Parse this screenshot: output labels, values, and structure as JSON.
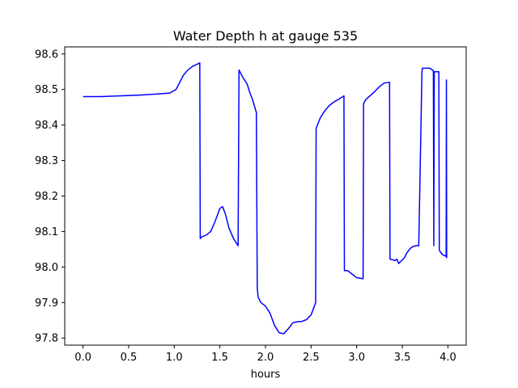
{
  "chart_data": {
    "type": "line",
    "title": "Water Depth h at gauge 535",
    "xlabel": "hours",
    "ylabel": "",
    "xlim": [
      -0.2,
      4.2
    ],
    "ylim": [
      97.78,
      98.62
    ],
    "grid": false,
    "legend": "none",
    "colors": {
      "line": "#0000ff",
      "axes": "#000000",
      "background": "#ffffff"
    },
    "x_ticks": [
      0.0,
      0.5,
      1.0,
      1.5,
      2.0,
      2.5,
      3.0,
      3.5,
      4.0
    ],
    "x_tick_labels": [
      "0.0",
      "0.5",
      "1.0",
      "1.5",
      "2.0",
      "2.5",
      "3.0",
      "3.5",
      "4.0"
    ],
    "y_ticks": [
      97.8,
      97.9,
      98.0,
      98.1,
      98.2,
      98.3,
      98.4,
      98.5,
      98.6
    ],
    "y_tick_labels": [
      "97.8",
      "97.9",
      "98.0",
      "98.1",
      "98.2",
      "98.3",
      "98.4",
      "98.5",
      "98.6"
    ],
    "series": [
      {
        "color": "#0000ff",
        "x": [
          0.0,
          0.2,
          0.4,
          0.6,
          0.8,
          0.95,
          1.02,
          1.06,
          1.1,
          1.15,
          1.2,
          1.28,
          1.285,
          1.3,
          1.35,
          1.4,
          1.45,
          1.5,
          1.53,
          1.56,
          1.6,
          1.65,
          1.7,
          1.71,
          1.72,
          1.75,
          1.8,
          1.83,
          1.86,
          1.9,
          1.91,
          1.92,
          1.95,
          2.0,
          2.05,
          2.1,
          2.15,
          2.2,
          2.25,
          2.3,
          2.35,
          2.4,
          2.45,
          2.5,
          2.55,
          2.555,
          2.6,
          2.65,
          2.7,
          2.75,
          2.8,
          2.86,
          2.865,
          2.9,
          2.95,
          3.0,
          3.07,
          3.075,
          3.1,
          3.15,
          3.2,
          3.25,
          3.3,
          3.35,
          3.36,
          3.365,
          3.4,
          3.42,
          3.44,
          3.46,
          3.48,
          3.5,
          3.52,
          3.55,
          3.58,
          3.6,
          3.62,
          3.65,
          3.68,
          3.715,
          3.72,
          3.75,
          3.8,
          3.84,
          3.845,
          3.85,
          3.855,
          3.9,
          3.905,
          3.91,
          3.94,
          3.98,
          3.983,
          3.986
        ],
        "y": [
          98.48,
          98.48,
          98.482,
          98.484,
          98.487,
          98.49,
          98.5,
          98.52,
          98.54,
          98.555,
          98.565,
          98.575,
          98.08,
          98.085,
          98.09,
          98.1,
          98.13,
          98.165,
          98.17,
          98.15,
          98.11,
          98.08,
          98.06,
          98.555,
          98.55,
          98.535,
          98.515,
          98.49,
          98.47,
          98.435,
          97.94,
          97.915,
          97.9,
          97.89,
          97.87,
          97.835,
          97.815,
          97.812,
          97.826,
          97.843,
          97.846,
          97.847,
          97.852,
          97.865,
          97.9,
          98.39,
          98.42,
          98.44,
          98.455,
          98.465,
          98.472,
          98.482,
          97.99,
          97.99,
          97.98,
          97.97,
          97.967,
          98.46,
          98.472,
          98.483,
          98.495,
          98.508,
          98.518,
          98.52,
          98.52,
          98.022,
          98.02,
          98.018,
          98.022,
          98.01,
          98.015,
          98.02,
          98.025,
          98.04,
          98.05,
          98.055,
          98.058,
          98.06,
          98.06,
          98.55,
          98.56,
          98.56,
          98.56,
          98.553,
          98.06,
          98.55,
          98.55,
          98.55,
          98.05,
          98.045,
          98.035,
          98.03,
          98.527,
          98.025
        ]
      }
    ]
  }
}
